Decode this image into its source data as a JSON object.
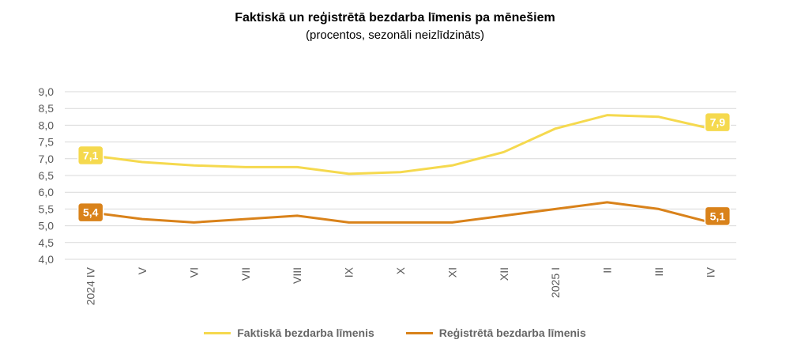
{
  "chart_data": {
    "type": "line",
    "title": "Faktiskā un reģistrētā bezdarba līmenis pa mēnešiem",
    "subtitle": "(procentos, sezonāli neizlīdzināts)",
    "categories": [
      "2024 IV",
      "V",
      "VI",
      "VII",
      "VIII",
      "IX",
      "X",
      "XI",
      "XII",
      "2025 I",
      "II",
      "III",
      "IV"
    ],
    "ylim": [
      4.0,
      9.0
    ],
    "yticks": [
      "4,0",
      "4,5",
      "5,0",
      "5,5",
      "6,0",
      "6,5",
      "7,0",
      "7,5",
      "8,0",
      "8,5",
      "9,0"
    ],
    "grid": true,
    "legend_position": "bottom",
    "series": [
      {
        "name": "Faktiskā bezdarba līmenis",
        "color": "#F5D94E",
        "values": [
          7.1,
          6.9,
          6.8,
          6.75,
          6.75,
          6.55,
          6.6,
          6.8,
          7.2,
          7.9,
          8.3,
          8.25,
          7.9
        ],
        "start_label": "7,1",
        "end_label": "7,9"
      },
      {
        "name": "Reģistrētā bezdarba līmenis",
        "color": "#D9821A",
        "values": [
          5.4,
          5.2,
          5.1,
          5.2,
          5.3,
          5.1,
          5.1,
          5.1,
          5.3,
          5.5,
          5.7,
          5.5,
          5.1
        ],
        "start_label": "5,4",
        "end_label": "5,1"
      }
    ]
  }
}
